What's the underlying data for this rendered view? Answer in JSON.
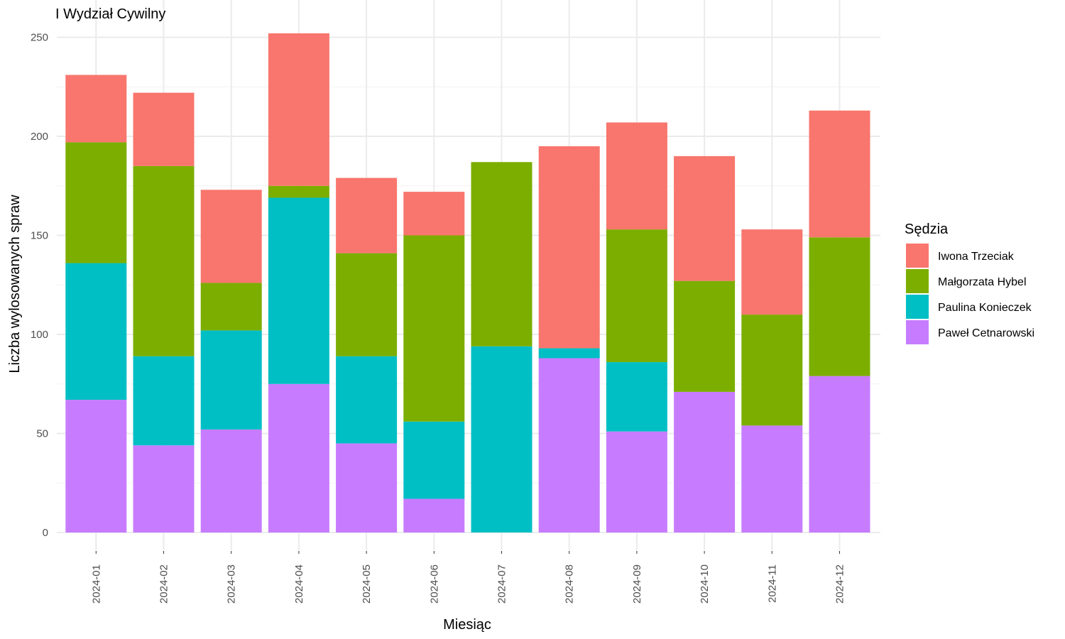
{
  "chart_data": {
    "type": "bar",
    "stacked": true,
    "title": "I Wydział Cywilny",
    "xlabel": "Miesiąc",
    "ylabel": "Liczba wylosowanych spraw",
    "ylim": [
      0,
      260
    ],
    "y_ticks": [
      0,
      50,
      100,
      150,
      200,
      250
    ],
    "grid": true,
    "legend_title": "Sędzia",
    "legend_position": "right",
    "categories": [
      "2024-01",
      "2024-02",
      "2024-03",
      "2024-04",
      "2024-05",
      "2024-06",
      "2024-07",
      "2024-08",
      "2024-09",
      "2024-10",
      "2024-11",
      "2024-12"
    ],
    "series": [
      {
        "name": "Paweł Cetnarowski",
        "color": "#C77CFF",
        "values": [
          67,
          44,
          52,
          75,
          45,
          17,
          0,
          88,
          51,
          71,
          54,
          79
        ]
      },
      {
        "name": "Paulina Konieczek",
        "color": "#00BFC4",
        "values": [
          69,
          45,
          50,
          94,
          44,
          39,
          94,
          5,
          35,
          0,
          0,
          0
        ]
      },
      {
        "name": "Małgorzata Hybel",
        "color": "#7CAE00",
        "values": [
          61,
          96,
          24,
          6,
          52,
          94,
          93,
          0,
          67,
          56,
          56,
          70
        ]
      },
      {
        "name": "Iwona Trzeciak",
        "color": "#F8766D",
        "values": [
          34,
          37,
          47,
          77,
          38,
          22,
          0,
          102,
          54,
          63,
          43,
          64
        ]
      }
    ],
    "legend_order": [
      "Iwona Trzeciak",
      "Małgorzata Hybel",
      "Paulina Konieczek",
      "Paweł Cetnarowski"
    ]
  }
}
